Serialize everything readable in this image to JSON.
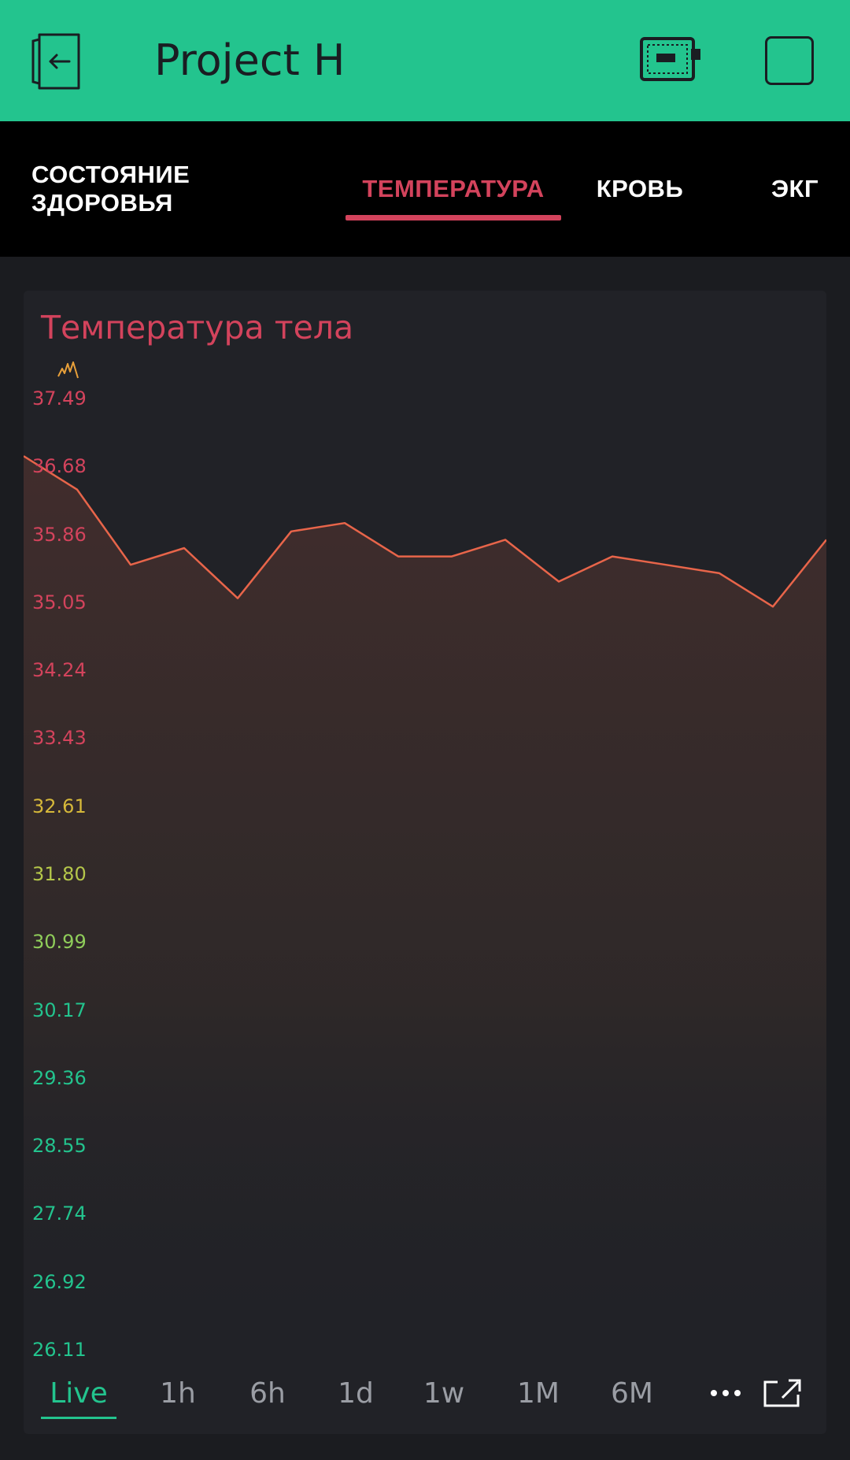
{
  "header": {
    "title": "Project H",
    "background": "#23c48e",
    "back_icon": "exit-door-icon",
    "device_icon": "device-board-icon",
    "square_icon": "square-icon"
  },
  "tabs": [
    {
      "label": "СОСТОЯНИЕ ЗДОРОВЬЯ",
      "active": false
    },
    {
      "label": "ТЕМПЕРАТУРА",
      "active": true
    },
    {
      "label": "КРОВЬ",
      "active": false
    },
    {
      "label": "ЭКГ",
      "active": false
    }
  ],
  "chart_card": {
    "title": "Температура тела",
    "series_icon": "sparkline-icon"
  },
  "chart_data": {
    "type": "area",
    "title": "Температура тела",
    "ylabel": "",
    "xlabel": "",
    "ylim": [
      26.11,
      37.49
    ],
    "y_ticks": [
      "37.49",
      "36.68",
      "35.86",
      "35.05",
      "34.24",
      "33.43",
      "32.61",
      "31.80",
      "30.99",
      "30.17",
      "29.36",
      "28.55",
      "27.74",
      "26.92",
      "26.11"
    ],
    "y_tick_colors": [
      "#d3435c",
      "#d3435c",
      "#d3435c",
      "#d3435c",
      "#d3435c",
      "#d3435c",
      "#d6b83a",
      "#b5c74a",
      "#8fcd5a",
      "#23c48e",
      "#23c48e",
      "#23c48e",
      "#23c48e",
      "#23c48e",
      "#23c48e"
    ],
    "line_color": "#e8654a",
    "grid": false,
    "series": [
      {
        "values": [
          36.8,
          36.4,
          35.5,
          35.7,
          35.1,
          35.9,
          36.0,
          35.6,
          35.6,
          35.8,
          35.3,
          35.6,
          35.5,
          35.4,
          35.0,
          35.8
        ]
      }
    ]
  },
  "time_range": {
    "options": [
      "Live",
      "1h",
      "6h",
      "1d",
      "1w",
      "1M",
      "6M"
    ],
    "selected": "Live",
    "more_icon": "more-dots-icon",
    "expand_icon": "fullscreen-icon"
  }
}
